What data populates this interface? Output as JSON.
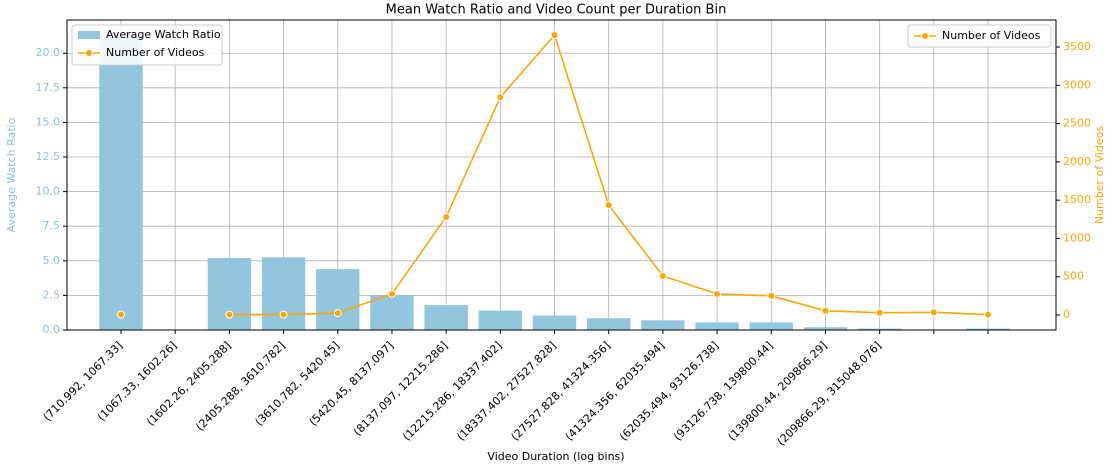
{
  "chart_data": {
    "type": "bar_line",
    "title": "Mean Watch Ratio and Video Count per Duration Bin",
    "x_label": "Video Duration (log bins)",
    "y_label": "Average Watch Ratio",
    "y2_label": "Number of Videos",
    "categories": [
      "(710.992, 1067.33]",
      "(1067.33, 1602.26]",
      "(1602.26, 2405.288]",
      "(2405.288, 3610.782]",
      "(3610.782, 5420.45]",
      "(5420.45, 8137.097]",
      "(8137.097, 12215.286]",
      "(12215.286, 18337.402]",
      "(18337.402, 27527.828]",
      "(27527.828, 41324.356]",
      "(41324.356, 62035.494]",
      "(62035.494, 93126.738]",
      "(93126.738, 139800.44]",
      "(139800.44, 209866.29]",
      "(209866.29, 315048.076]",
      null,
      null
    ],
    "series": [
      {
        "name": "Average Watch Ratio",
        "type": "bar",
        "color": "#92c5de",
        "values": [
          21.3,
          null,
          5.2,
          5.25,
          4.4,
          2.5,
          1.8,
          1.4,
          1.05,
          0.85,
          0.7,
          0.55,
          0.55,
          0.2,
          0.1,
          null,
          0.1
        ]
      },
      {
        "name": "Number of Videos",
        "type": "line",
        "axis": "y2",
        "color": "#ffa500",
        "values": [
          5,
          null,
          5,
          5,
          25,
          275,
          1280,
          2845,
          3655,
          1435,
          510,
          275,
          250,
          55,
          30,
          35,
          5
        ]
      }
    ],
    "ylim": [
      0,
      22.4
    ],
    "yticks": [
      {
        "value": 0,
        "label": "0.0"
      },
      {
        "value": 2.5,
        "label": "2.5"
      },
      {
        "value": 5,
        "label": "5.0"
      },
      {
        "value": 7.5,
        "label": "7.5"
      },
      {
        "value": 10,
        "label": "10.0"
      },
      {
        "value": 12.5,
        "label": "12.5"
      },
      {
        "value": 15,
        "label": "15.0"
      },
      {
        "value": 17.5,
        "label": "17.5"
      },
      {
        "value": 20,
        "label": "20.0"
      }
    ],
    "y2lim": [
      -196,
      3853
    ],
    "y2ticks": [
      0,
      500,
      1000,
      1500,
      2000,
      2500,
      3000,
      3500
    ],
    "grid": true
  }
}
